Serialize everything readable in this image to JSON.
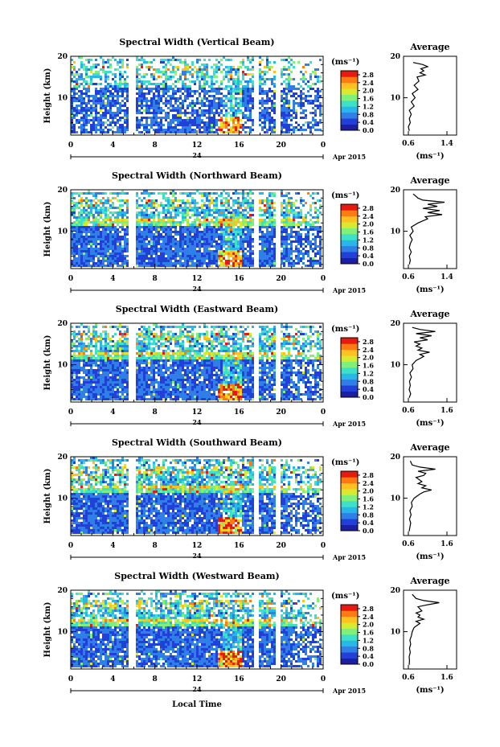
{
  "chart_data": {
    "type": "heatmap",
    "panels": [
      {
        "title": "Spectral Width (Vertical Beam)",
        "avg_title": "Average",
        "avg_xticks": [
          "0.6",
          "1.4"
        ],
        "avg_profile": [
          [
            2,
            0.62
          ],
          [
            3,
            0.6
          ],
          [
            4,
            0.64
          ],
          [
            5,
            0.62
          ],
          [
            6,
            0.66
          ],
          [
            7,
            0.62
          ],
          [
            8,
            0.72
          ],
          [
            9,
            0.66
          ],
          [
            10,
            0.74
          ],
          [
            11,
            0.68
          ],
          [
            12,
            0.8
          ],
          [
            13,
            0.72
          ],
          [
            14,
            0.82
          ],
          [
            15,
            0.78
          ],
          [
            15.5,
            0.95
          ],
          [
            16,
            0.84
          ],
          [
            16.5,
            0.92
          ],
          [
            17,
            0.86
          ],
          [
            17.5,
            1.0
          ],
          [
            18,
            0.9
          ],
          [
            18.5,
            0.7
          ]
        ]
      },
      {
        "title": "Spectral Width (Northward Beam)",
        "avg_title": "Average",
        "avg_xticks": [
          "0.6",
          "1.4"
        ],
        "avg_profile": [
          [
            2,
            0.62
          ],
          [
            3,
            0.64
          ],
          [
            4,
            0.62
          ],
          [
            5,
            0.66
          ],
          [
            6,
            0.62
          ],
          [
            7,
            0.64
          ],
          [
            8,
            0.68
          ],
          [
            9,
            0.63
          ],
          [
            10,
            0.7
          ],
          [
            11,
            0.66
          ],
          [
            12,
            0.8
          ],
          [
            12.5,
            0.9
          ],
          [
            13,
            1.0
          ],
          [
            13.5,
            0.95
          ],
          [
            14,
            1.3
          ],
          [
            14.5,
            1.0
          ],
          [
            15,
            1.25
          ],
          [
            15.5,
            0.9
          ],
          [
            16,
            1.2
          ],
          [
            16.5,
            1.0
          ],
          [
            17,
            1.35
          ],
          [
            17.5,
            0.9
          ],
          [
            18,
            0.8
          ],
          [
            19,
            0.7
          ]
        ]
      },
      {
        "title": "Spectral Width (Eastward Beam)",
        "avg_title": "Average",
        "avg_xticks": [
          "0.6",
          "1.6"
        ],
        "avg_profile": [
          [
            2,
            0.62
          ],
          [
            3,
            0.66
          ],
          [
            4,
            0.62
          ],
          [
            5,
            0.65
          ],
          [
            6,
            0.63
          ],
          [
            7,
            0.68
          ],
          [
            8,
            0.64
          ],
          [
            9,
            0.72
          ],
          [
            10,
            0.7
          ],
          [
            11,
            0.8
          ],
          [
            12,
            1.0
          ],
          [
            12.5,
            0.9
          ],
          [
            13,
            1.15
          ],
          [
            13.5,
            0.85
          ],
          [
            14,
            0.95
          ],
          [
            14.5,
            0.8
          ],
          [
            15,
            0.9
          ],
          [
            15.5,
            0.75
          ],
          [
            16,
            1.1
          ],
          [
            16.5,
            0.9
          ],
          [
            17,
            1.2
          ],
          [
            17.5,
            0.8
          ],
          [
            18,
            1.3
          ],
          [
            18.5,
            0.9
          ],
          [
            19,
            0.7
          ]
        ]
      },
      {
        "title": "Spectral Width (Southward Beam)",
        "avg_title": "Average",
        "avg_xticks": [
          "0.6",
          "1.6"
        ],
        "avg_profile": [
          [
            2,
            0.62
          ],
          [
            3,
            0.64
          ],
          [
            4,
            0.66
          ],
          [
            5,
            0.63
          ],
          [
            6,
            0.67
          ],
          [
            7,
            0.64
          ],
          [
            8,
            0.7
          ],
          [
            9,
            0.68
          ],
          [
            10,
            0.75
          ],
          [
            11,
            0.9
          ],
          [
            11.5,
            1.0
          ],
          [
            12,
            1.2
          ],
          [
            12.5,
            0.95
          ],
          [
            13,
            1.05
          ],
          [
            13.5,
            0.85
          ],
          [
            14,
            0.95
          ],
          [
            15,
            0.8
          ],
          [
            15.5,
            1.0
          ],
          [
            16,
            1.05
          ],
          [
            16.5,
            0.85
          ],
          [
            17,
            1.3
          ],
          [
            17.5,
            0.9
          ],
          [
            18,
            0.7
          ],
          [
            19,
            0.65
          ]
        ]
      },
      {
        "title": "Spectral Width (Westward Beam)",
        "avg_title": "Average",
        "avg_xticks": [
          "0.6",
          "1.6"
        ],
        "avg_profile": [
          [
            2,
            0.62
          ],
          [
            3,
            0.63
          ],
          [
            4,
            0.62
          ],
          [
            5,
            0.65
          ],
          [
            6,
            0.63
          ],
          [
            7,
            0.66
          ],
          [
            8,
            0.64
          ],
          [
            9,
            0.68
          ],
          [
            10,
            0.7
          ],
          [
            11,
            0.75
          ],
          [
            12,
            0.9
          ],
          [
            12.5,
            0.8
          ],
          [
            13,
            1.0
          ],
          [
            13.5,
            0.85
          ],
          [
            14,
            0.9
          ],
          [
            14.5,
            0.8
          ],
          [
            15,
            0.95
          ],
          [
            16,
            0.85
          ],
          [
            16.5,
            1.1
          ],
          [
            17,
            1.4
          ],
          [
            17.5,
            1.0
          ],
          [
            18,
            0.8
          ],
          [
            19,
            0.7
          ]
        ]
      }
    ],
    "ylabel": "Height (km)",
    "avg_ylabel": "(ms⁻¹)",
    "y_ticks": [
      "20",
      "10"
    ],
    "ylim": [
      1,
      20
    ],
    "x_ticks": [
      "0",
      "4",
      "8",
      "12",
      "16",
      "20",
      "0"
    ],
    "xlim": [
      0,
      24
    ],
    "date_day": "24",
    "date_label": "Apr 2015",
    "xlabel": "Local Time",
    "colorbar": {
      "unit": "(ms⁻¹)",
      "ticks": [
        "2.8",
        "2.4",
        "2.0",
        "1.6",
        "1.2",
        "0.8",
        "0.4",
        "0.0"
      ],
      "range": [
        0,
        3.0
      ]
    },
    "colors": {
      "colormap": [
        "#1e1ea0",
        "#2040d8",
        "#2f7fe6",
        "#27b7e8",
        "#3fe0c8",
        "#7ff07a",
        "#d8ea30",
        "#ffc020",
        "#ff7a10",
        "#e81a10"
      ],
      "gap": "#ffffff"
    },
    "data_gaps_hours": [
      [
        5.6,
        6.2
      ],
      [
        17.6,
        18.1
      ],
      [
        19.6,
        20.0
      ]
    ]
  }
}
